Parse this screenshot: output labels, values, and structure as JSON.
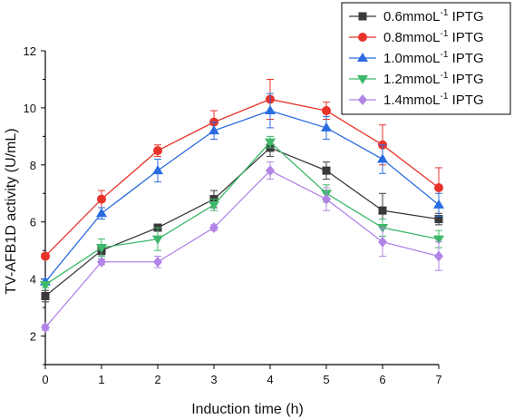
{
  "chart_data": {
    "type": "line",
    "xlabel": "Induction time (h)",
    "ylabel": "TV-AFB1D activity (U/mL)",
    "x": [
      0,
      1,
      2,
      3,
      4,
      5,
      6,
      7
    ],
    "xlim": [
      0,
      7
    ],
    "ylim": [
      1,
      12
    ],
    "xticks": [
      "0",
      "1",
      "2",
      "3",
      "4",
      "5",
      "6",
      "7"
    ],
    "yticks": [
      "2",
      "4",
      "6",
      "8",
      "10",
      "12"
    ],
    "grid": false,
    "legend_position": "top-right",
    "series": [
      {
        "name_main": "0.6mmoL",
        "name_sup": "-1",
        "name_tail": " IPTG",
        "color": "#3a3a3a",
        "marker": "square",
        "values": [
          3.4,
          5.0,
          5.8,
          6.8,
          8.6,
          7.8,
          6.4,
          6.1
        ],
        "errors": [
          0.2,
          0.15,
          0.1,
          0.3,
          0.3,
          0.3,
          0.6,
          0.2
        ]
      },
      {
        "name_main": "0.8mmoL",
        "name_sup": "-1",
        "name_tail": " IPTG",
        "color": "#e8332b",
        "marker": "circle",
        "values": [
          4.8,
          6.8,
          8.5,
          9.5,
          10.3,
          9.9,
          8.7,
          7.2
        ],
        "errors": [
          0.1,
          0.3,
          0.2,
          0.4,
          0.7,
          0.3,
          0.7,
          0.7
        ]
      },
      {
        "name_main": "1.0mmoL",
        "name_sup": "-1",
        "name_tail": " IPTG",
        "color": "#2a6be0",
        "marker": "triangle-up",
        "values": [
          3.9,
          6.3,
          7.8,
          9.2,
          9.9,
          9.3,
          8.2,
          6.6
        ],
        "errors": [
          0.1,
          0.2,
          0.4,
          0.3,
          0.6,
          0.4,
          0.5,
          0.4
        ]
      },
      {
        "name_main": "1.2mmoL",
        "name_sup": "-1",
        "name_tail": " IPTG",
        "color": "#3db86a",
        "marker": "triangle-down",
        "values": [
          3.8,
          5.1,
          5.4,
          6.6,
          8.8,
          7.0,
          5.8,
          5.4
        ],
        "errors": [
          0.1,
          0.3,
          0.4,
          0.2,
          0.2,
          0.3,
          0.3,
          0.3
        ]
      },
      {
        "name_main": "1.4mmoL",
        "name_sup": "-1",
        "name_tail": " IPTG",
        "color": "#b184e6",
        "marker": "diamond",
        "values": [
          2.3,
          4.6,
          4.6,
          5.8,
          7.8,
          6.8,
          5.3,
          4.8
        ],
        "errors": [
          0.1,
          0.1,
          0.2,
          0.1,
          0.3,
          0.4,
          0.5,
          0.5
        ]
      }
    ]
  }
}
